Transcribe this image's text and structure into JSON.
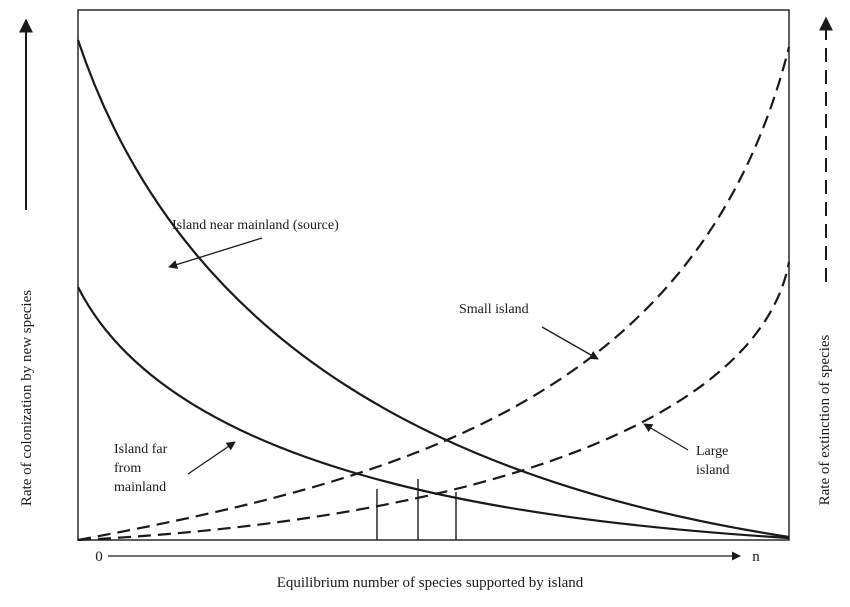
{
  "labels": {
    "y_left": "Rate of colonization by new species",
    "y_right": "Rate of extinction of species",
    "x_axis": "Equilibrium number of species supported by island",
    "x_start": "0",
    "x_end": "n"
  },
  "annotations": {
    "near_mainland": "Island near mainland (source)",
    "far_line1": "Island far",
    "far_line2": "from",
    "far_line3": "mainland",
    "small_island": "Small island",
    "large_line1": "Large",
    "large_line2": "island"
  },
  "colors": {
    "ink": "#1a1a1a",
    "background": "#ffffff"
  }
}
